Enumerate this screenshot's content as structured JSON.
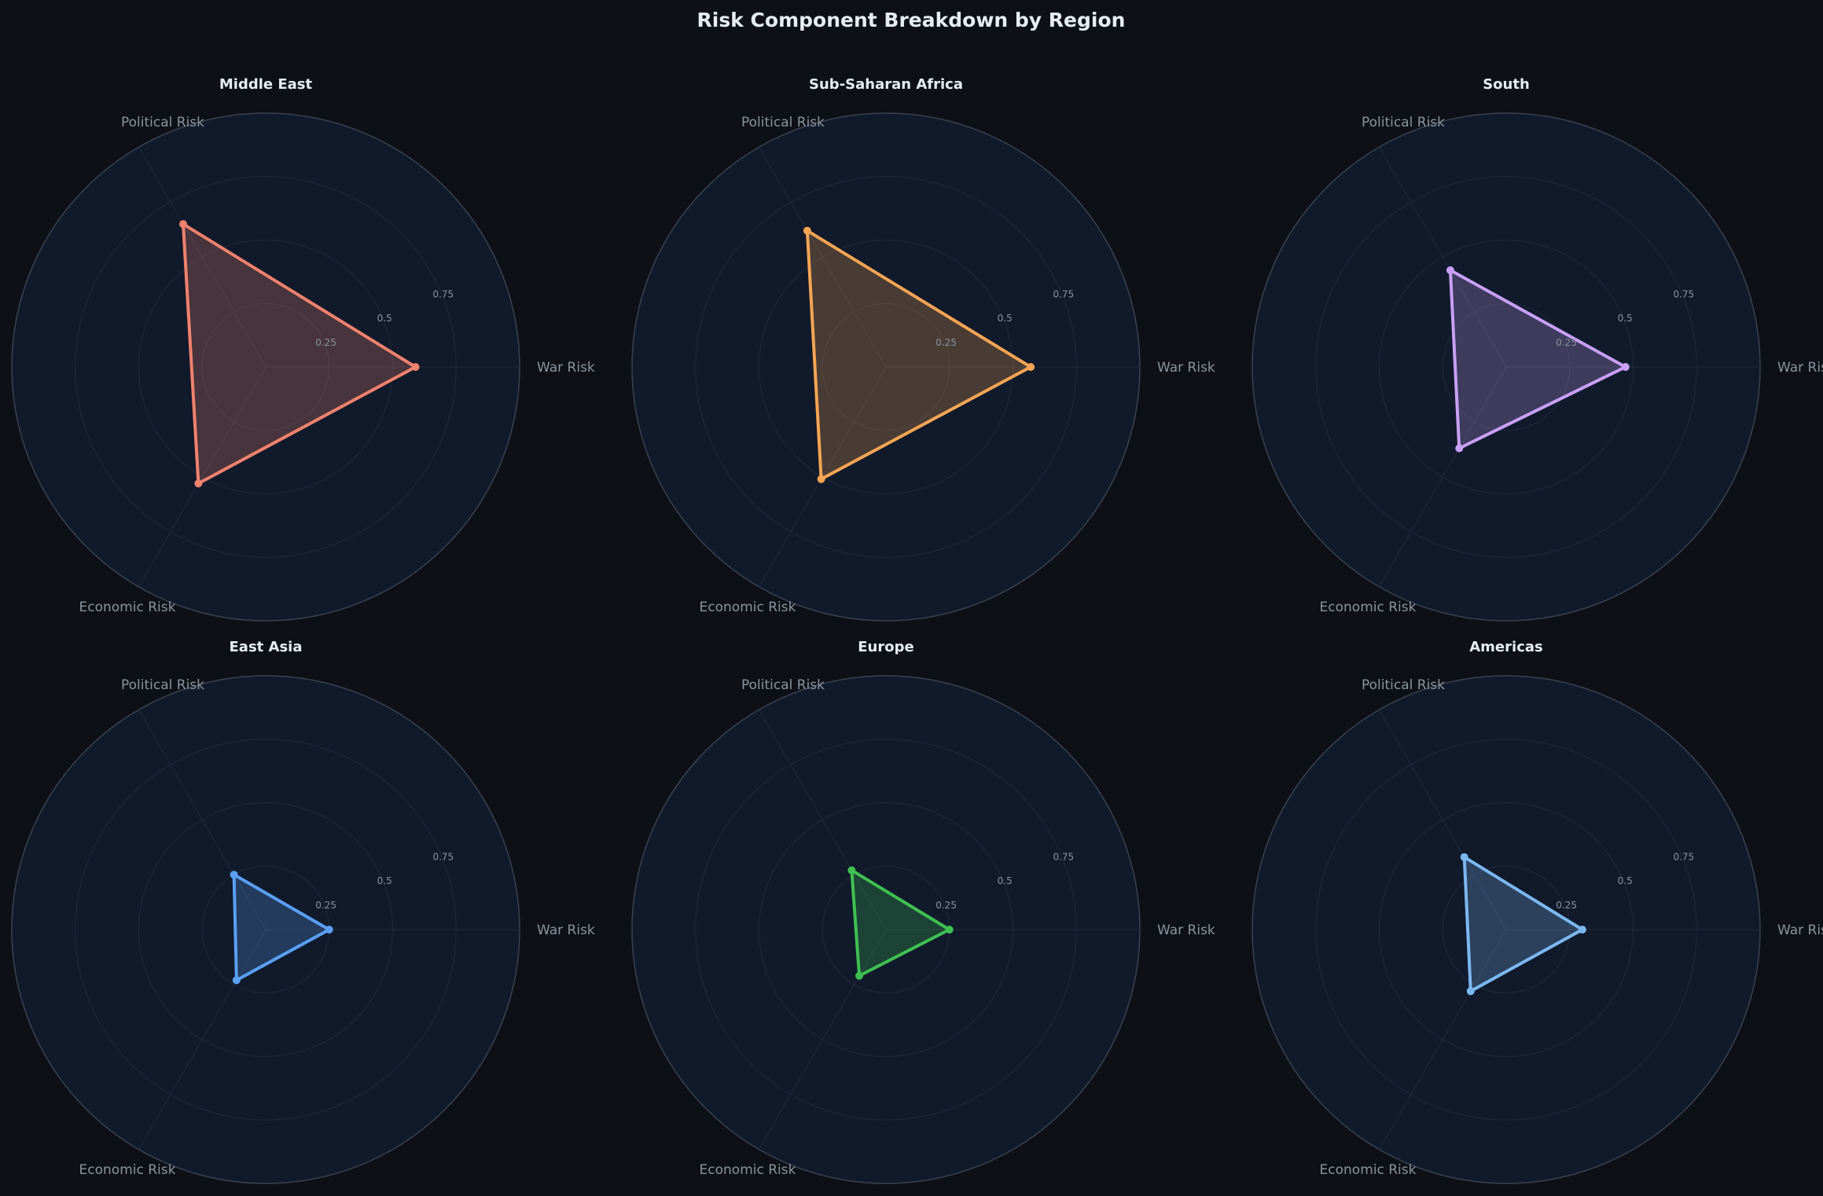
{
  "chart_data": {
    "type": "radar",
    "title": "Risk Component Breakdown by Region",
    "axes": [
      "War Risk",
      "Political Risk",
      "Economic Risk"
    ],
    "rlim": [
      0,
      1
    ],
    "rticks": [
      0.25,
      0.5,
      0.75
    ],
    "rtick_labels": [
      "0.25",
      "0.5",
      "0.75"
    ],
    "grid": true,
    "panels": [
      {
        "title": "Middle East",
        "values": [
          0.59,
          0.65,
          0.53
        ],
        "color": "#f0826e"
      },
      {
        "title": "Sub-Saharan Africa",
        "values": [
          0.57,
          0.62,
          0.51
        ],
        "color": "#f5a554"
      },
      {
        "title": "South",
        "values": [
          0.47,
          0.44,
          0.37
        ],
        "color": "#c9a0f5"
      },
      {
        "title": "East Asia",
        "values": [
          0.25,
          0.25,
          0.23
        ],
        "color": "#5aa0f5"
      },
      {
        "title": "Europe",
        "values": [
          0.25,
          0.27,
          0.21
        ],
        "color": "#3fc052"
      },
      {
        "title": "Americas",
        "values": [
          0.3,
          0.33,
          0.28
        ],
        "color": "#7cb8f0"
      }
    ]
  }
}
